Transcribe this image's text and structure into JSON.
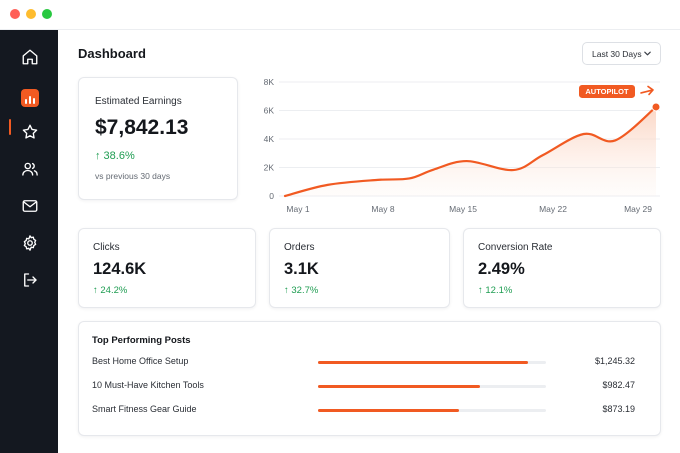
{
  "window": {
    "controls": [
      "close",
      "minimize",
      "zoom"
    ]
  },
  "sidebar": {
    "items": [
      {
        "name": "home",
        "icon": "home-icon",
        "active": false
      },
      {
        "name": "earnings",
        "icon": "chart-icon",
        "active": true
      },
      {
        "name": "favorites",
        "icon": "star-icon",
        "active": false
      },
      {
        "name": "audience",
        "icon": "users-icon",
        "active": false
      },
      {
        "name": "messages",
        "icon": "mail-icon",
        "active": false
      },
      {
        "name": "settings",
        "icon": "gear-icon",
        "active": false
      },
      {
        "name": "logout",
        "icon": "logout-icon",
        "active": false
      }
    ]
  },
  "header": {
    "title": "Dashboard",
    "range_label": "Last 30 Days"
  },
  "earnings": {
    "label": "Estimated Earnings",
    "value": "$7,842.13",
    "change": "↑ 38.6%",
    "comparison": "vs previous 30 days"
  },
  "chart_data": {
    "type": "area",
    "x": [
      "May 1",
      "May 8",
      "May 15",
      "May 22",
      "May 29"
    ],
    "y_ticks": [
      "0",
      "2K",
      "4K",
      "6K",
      "8K"
    ],
    "ylim": [
      0,
      8000
    ],
    "points": [
      [
        0,
        0
      ],
      [
        0.115,
        780
      ],
      [
        0.25,
        1130
      ],
      [
        0.335,
        1230
      ],
      [
        0.4,
        1850
      ],
      [
        0.49,
        2450
      ],
      [
        0.615,
        1820
      ],
      [
        0.695,
        2870
      ],
      [
        0.805,
        4350
      ],
      [
        0.89,
        3900
      ],
      [
        1.0,
        6250
      ]
    ],
    "marker_label": "AUTOPILOT",
    "colors": {
      "line": "#f15a22",
      "fill": "#fde3d6",
      "grid": "#eceef1",
      "axis_text": "#646a73"
    }
  },
  "metrics": [
    {
      "label": "Clicks",
      "value": "124.6K",
      "change": "↑ 24.2%"
    },
    {
      "label": "Orders",
      "value": "3.1K",
      "change": "↑ 32.7%"
    },
    {
      "label": "Conversion Rate",
      "value": "2.49%",
      "change": "↑ 12.1%"
    }
  ],
  "top_posts": {
    "title": "Top Performing Posts",
    "rows": [
      {
        "name": "Best Home Office Setup",
        "amount": "$1,245.32",
        "share": 0.92
      },
      {
        "name": "10 Must-Have Kitchen Tools",
        "amount": "$982.47",
        "share": 0.71
      },
      {
        "name": "Smart Fitness Gear Guide",
        "amount": "$873.19",
        "share": 0.62
      }
    ]
  },
  "colors": {
    "accent": "#f15a22",
    "positive": "#1f9d52",
    "sidebar": "#141820"
  }
}
